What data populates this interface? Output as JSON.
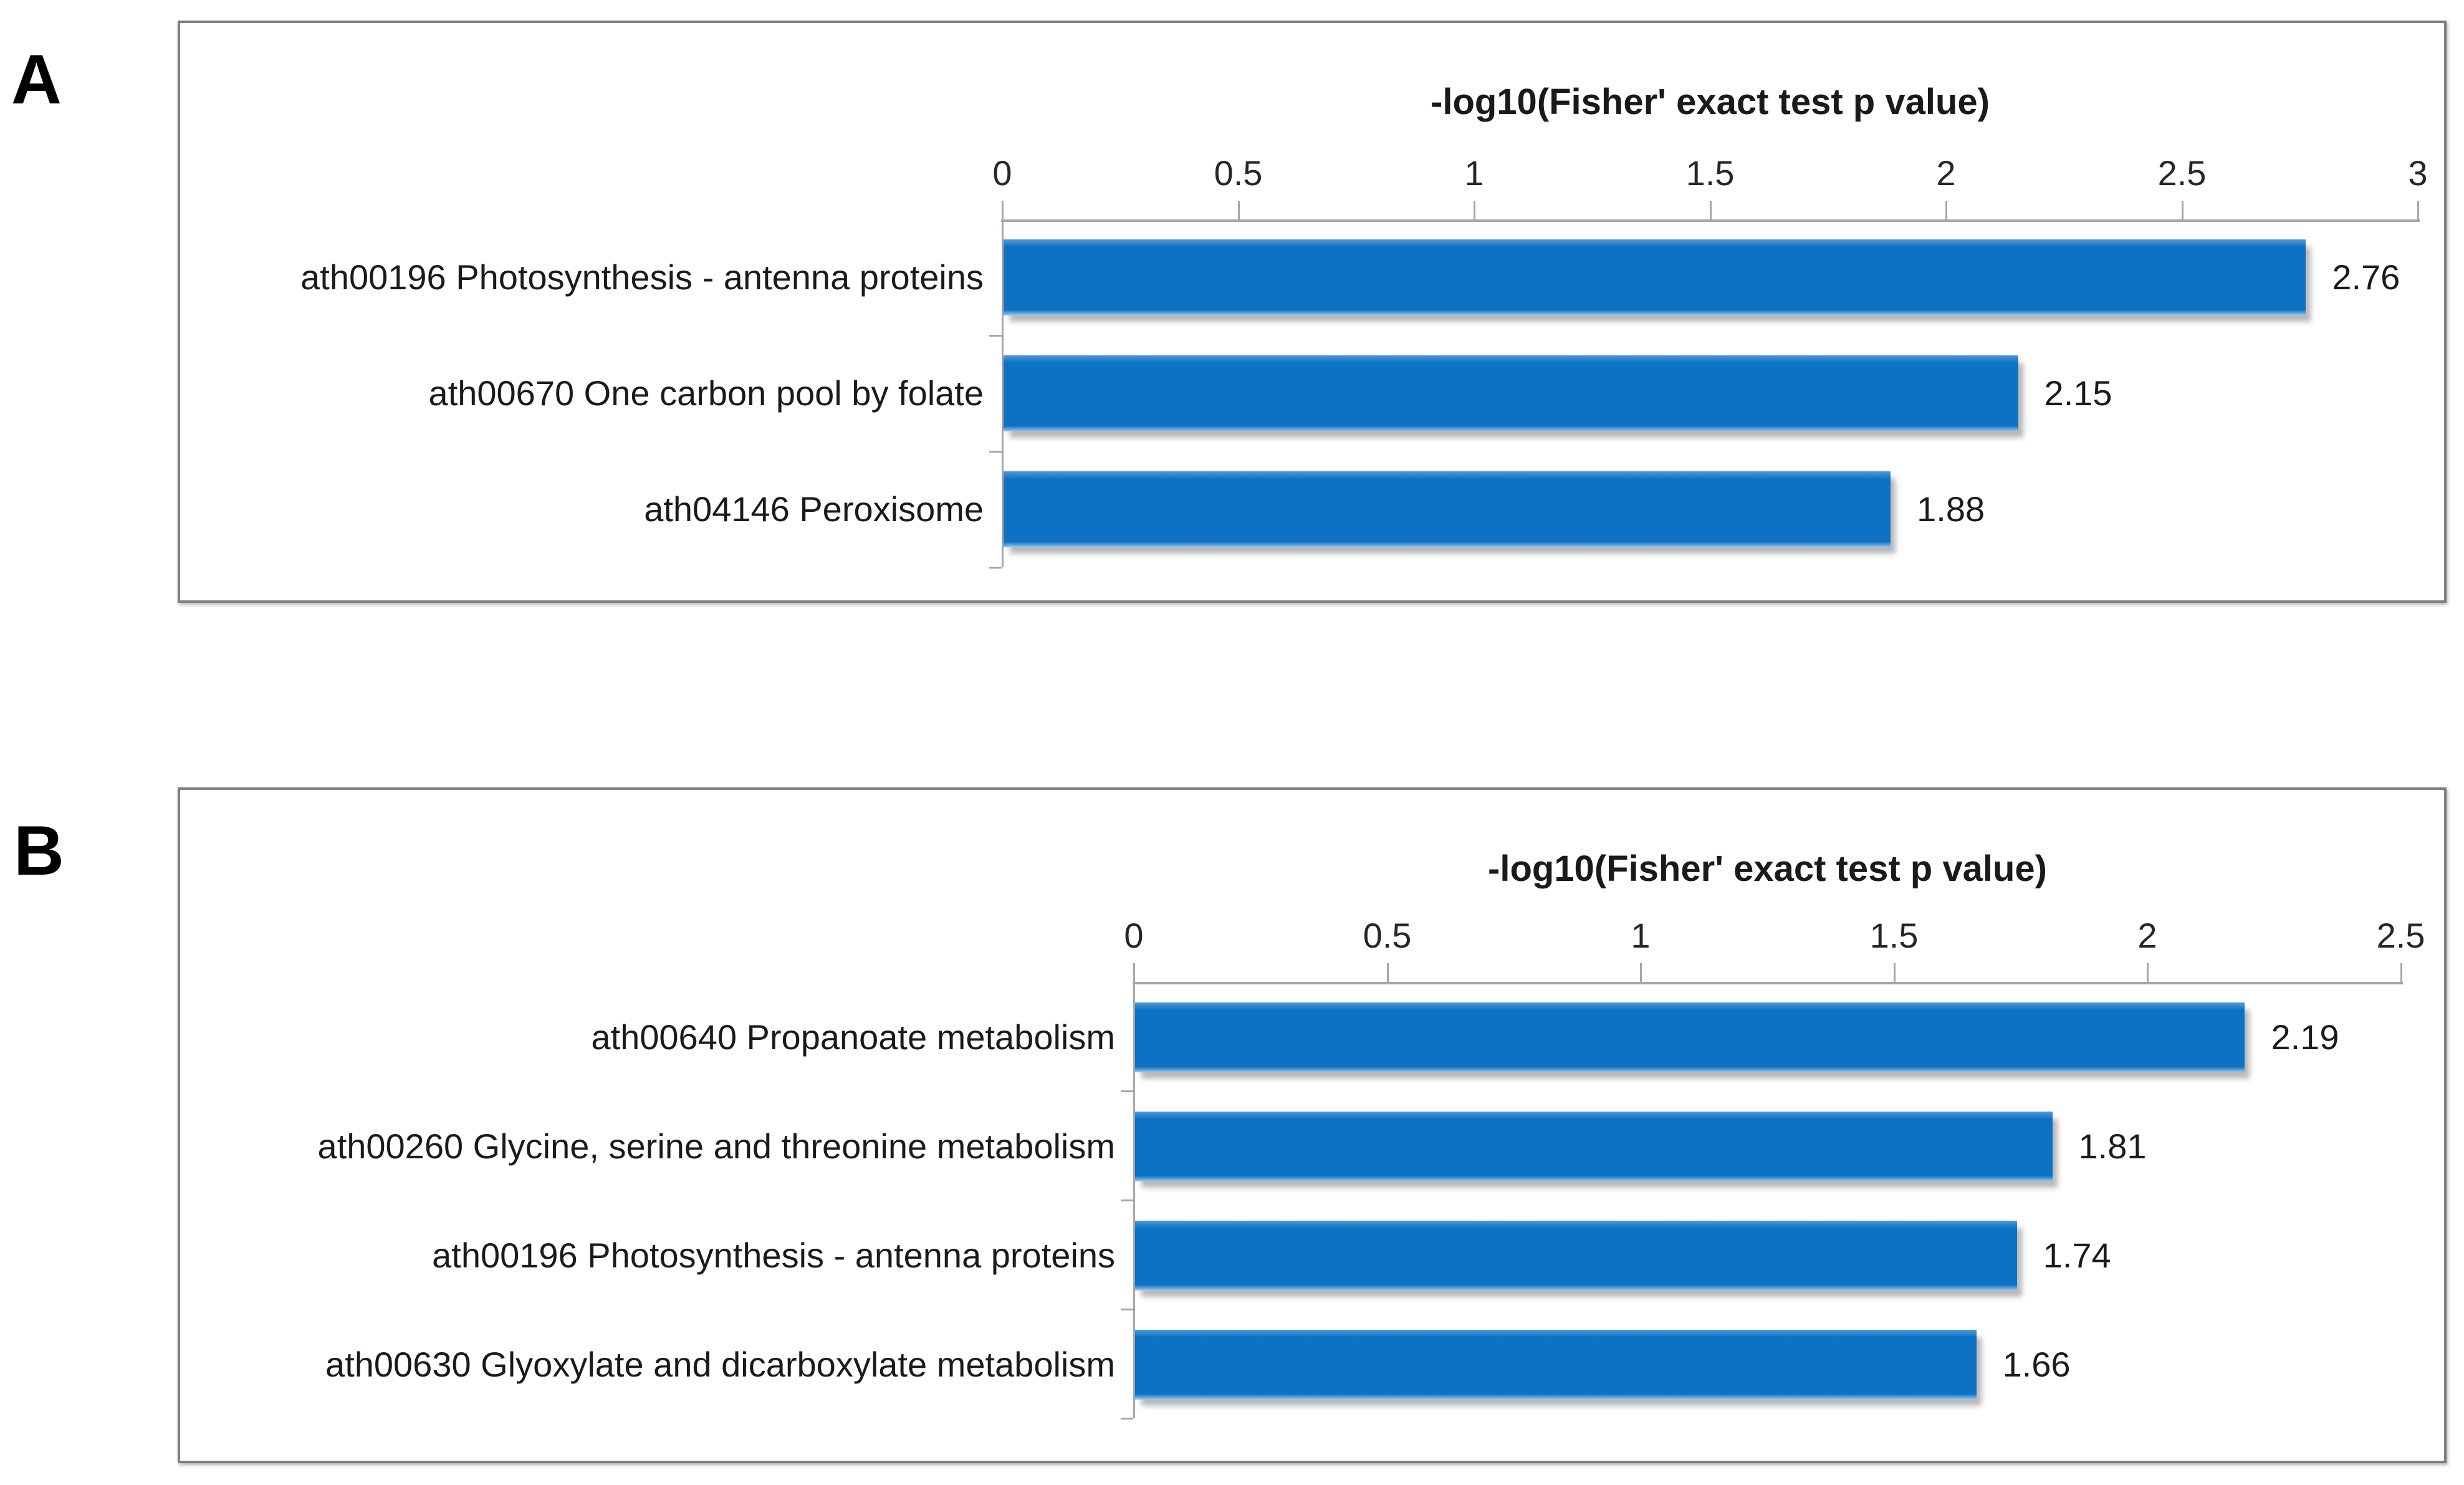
{
  "chart_data": [
    {
      "id": "a",
      "panel_label": "A",
      "type": "bar",
      "orientation": "horizontal",
      "title": "-log10(Fisher' exact test p value)",
      "categories": [
        "ath00196 Photosynthesis - antenna proteins",
        "ath00670 One carbon pool by folate",
        "ath04146 Peroxisome"
      ],
      "values": [
        2.76,
        2.15,
        1.88
      ],
      "value_labels": [
        "2.76",
        "2.15",
        "1.88"
      ],
      "xlabel": "",
      "ylabel": "",
      "xlim": [
        0,
        3
      ],
      "xtick_values": [
        0,
        0.5,
        1,
        1.5,
        2,
        2.5,
        3
      ],
      "xtick_labels": [
        "0",
        "0.5",
        "1",
        "1.5",
        "2",
        "2.5",
        "3"
      ],
      "bar_color": "#0d72c4",
      "axis_color": "#a6a6a6",
      "grid": false,
      "legend_position": "none"
    },
    {
      "id": "b",
      "panel_label": "B",
      "type": "bar",
      "orientation": "horizontal",
      "title": "-log10(Fisher' exact test p value)",
      "categories": [
        "ath00640 Propanoate metabolism",
        "ath00260 Glycine, serine and threonine metabolism",
        "ath00196 Photosynthesis - antenna proteins",
        "ath00630 Glyoxylate and dicarboxylate metabolism"
      ],
      "values": [
        2.19,
        1.81,
        1.74,
        1.66
      ],
      "value_labels": [
        "2.19",
        "1.81",
        "1.74",
        "1.66"
      ],
      "xlabel": "",
      "ylabel": "",
      "xlim": [
        0,
        2.5
      ],
      "xtick_values": [
        0,
        0.5,
        1,
        1.5,
        2,
        2.5
      ],
      "xtick_labels": [
        "0",
        "0.5",
        "1",
        "1.5",
        "2",
        "2.5"
      ],
      "bar_color": "#0d72c4",
      "axis_color": "#a6a6a6",
      "grid": false,
      "legend_position": "none"
    }
  ]
}
